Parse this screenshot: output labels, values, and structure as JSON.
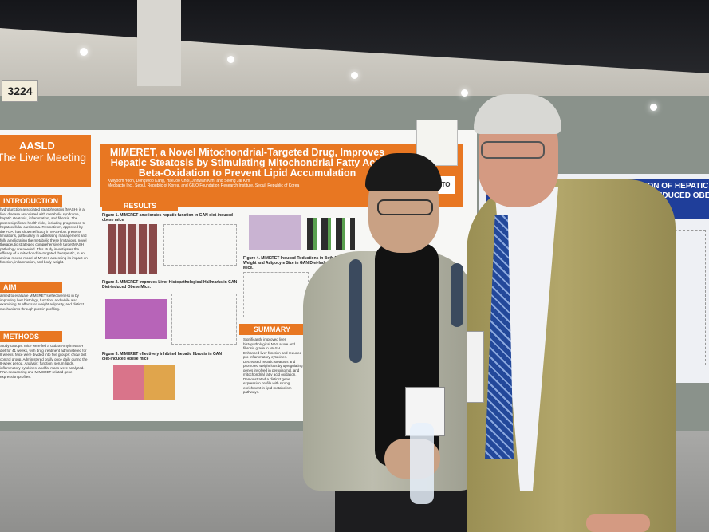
{
  "booth": "3224",
  "left_poster": {
    "logo": {
      "org": "AASLD",
      "meeting": "The Liver Meeting"
    },
    "title": "MIMERET, a Novel Mitochondrial-Targeted Drug, Improves Hepatic Steatosis by Stimulating Mitochondrial Fatty Acid Beta-Oxidation to Prevent Lipid Accumulation",
    "authors": "Kwiyoom Yoon, DongWoo Kang, HaeJoo Choi, Jinhwan Kim, and Seong Jai Kim",
    "affiliations": "Medpacto Inc., Seoul, Republic of Korea, and GILO Foundation Research Institute, Seoul, Republic of Korea",
    "sections": {
      "introduction": "INTRODUCTION",
      "aim": "AIM",
      "methods": "METHODS",
      "results": "RESULTS",
      "summary": "SUMMARY"
    },
    "introduction_text": "hydrofunction-associated steatohepatitis (MASH) is a liver disease associated with metabolic syndrome, hepatic steatosis, inflammation, and fibrosis. The poses significant health risks, including progression to hepatocellular carcinoma. Resmetirom, approved by the FDA, has shown efficacy in MASH but presents limitations, particularly in addressing management and fully ameliorating the metabolic these limitations, novel therapeutic strategies comprehensively target MASH pathology are needed. This study investigates the efficacy of a mitochondrial-targeted therapeutic, in an animal mouse model of MASH, assessing its impact on function, inflammation, and body weight.",
    "aim_text": "aimed to evaluate MIMERET's effectiveness in by improving liver histology, function, and while also examining its effects on weight adiposity, and distinct mechanisms through protein profiling.",
    "methods_text": "Study Groups: mice were fed a Gubra-Amylin NASH diet for 41 weeks, with drug treatment administered for 8 weeks. Mice were divided into five groups: chow diet control group. Administered orally once daily during the 8-week period. Analysis: function, serum lipids, inflammatory cytokines, and fat mass were analyzed. RNA sequencing and MIMERET-related gene expression profiles.",
    "figures": [
      "Figure 1. MIMERET ameliorates hepatic function in GAN diet-induced obese mice",
      "Figure 2. MIMERET Improves Liver Histopathological Hallmarks in GAN Diet-induced Obese Mice.",
      "Figure 3. MIMERET effectively inhibited hepatic fibrosis in GAN diet-induced obese mice",
      "Figure 4. MIMERET Induced Reductions in Both Body Weight and Adipocyte Size in GAN Diet-Induced Obese Mice."
    ],
    "summary_points": [
      "Significantly improved liver histopathological NAS score and fibrosis grade in MASH.",
      "Enhanced liver function and reduced pro-inflammatory cytokines.",
      "Decreased hepatic steatosis and promoted weight loss by upregulating genes involved in peroxisomal, and mitochondrial fatty acid oxidation.",
      "Demonstrated a distinct gene expression profile with strong enrichment in lipid metabolism pathways."
    ],
    "sponsor": "MEDPACTO"
  },
  "right_poster": {
    "title_line1": "SIGMA1 REGULATION OF HEPATIC LIPID ME",
    "title_line2": "RESPONSE TO DIET-INDUCED OBES"
  }
}
